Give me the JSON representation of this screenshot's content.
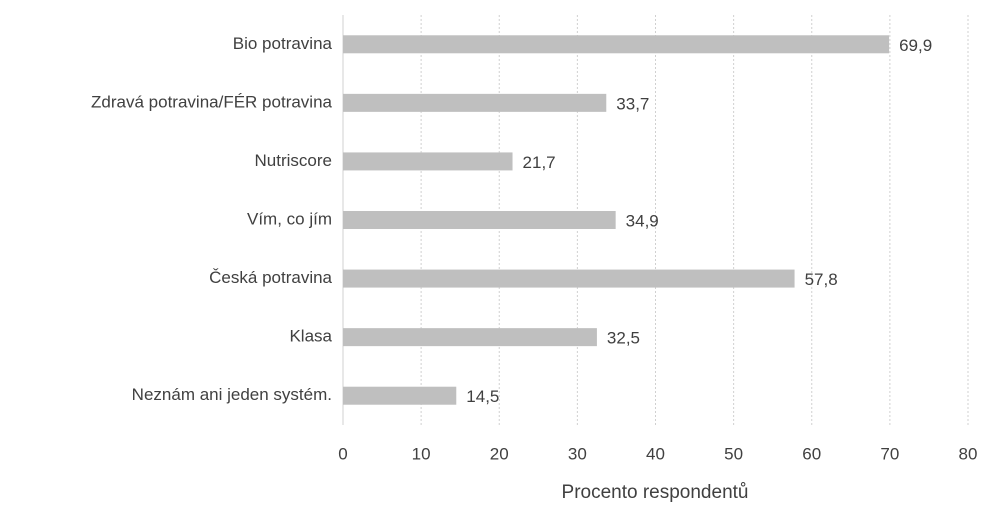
{
  "chart_data": {
    "type": "barh",
    "xlabel": "Procento respondentů",
    "categories": [
      "Bio potravina",
      "Zdravá potravina/FÉR potravina",
      "Nutriscore",
      "Vím, co jím",
      "Česká potravina",
      "Klasa",
      "Neznám ani jeden systém."
    ],
    "values": [
      69.9,
      33.7,
      21.7,
      34.9,
      57.8,
      32.5,
      14.5
    ],
    "value_labels": [
      "69,9",
      "33,7",
      "21,7",
      "34,9",
      "57,8",
      "32,5",
      "14,5"
    ],
    "color": "#bfbfbf",
    "xlim": [
      0,
      80
    ],
    "xticks": [
      0,
      10,
      20,
      30,
      40,
      50,
      60,
      70,
      80
    ],
    "grid": true
  }
}
